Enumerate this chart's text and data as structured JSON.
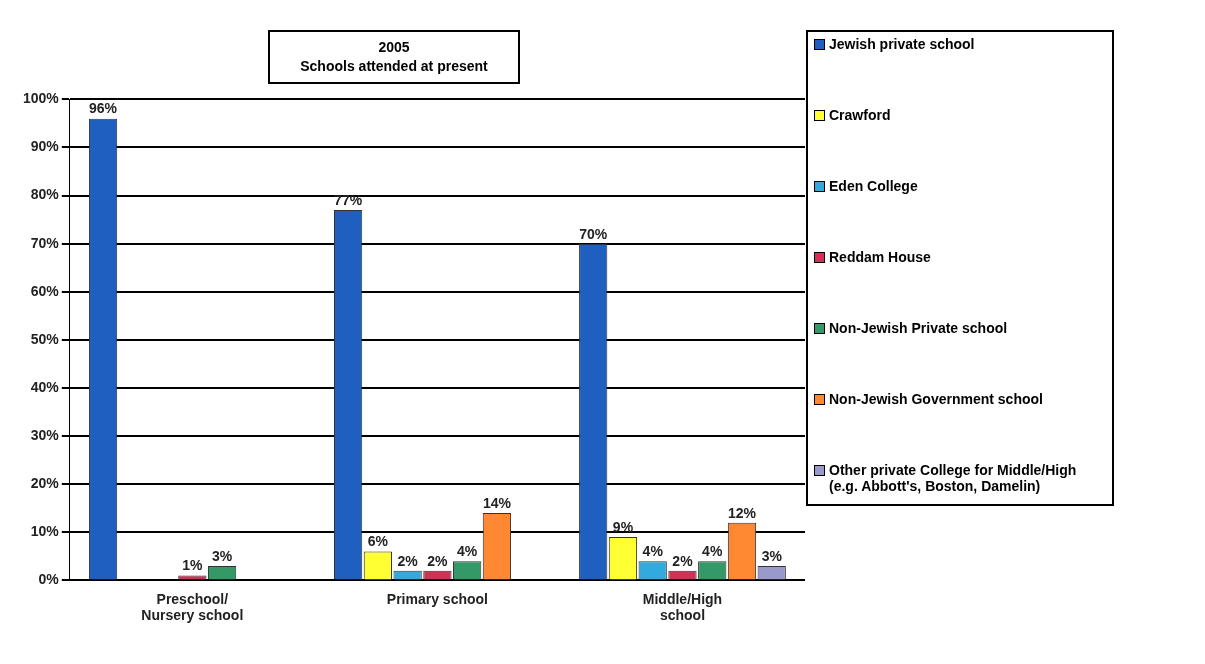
{
  "chart_data": {
    "type": "bar",
    "title": "2005",
    "subtitle": "Schools attended at present",
    "categories": [
      "Preschool/ Nursery school",
      "Primary school",
      "Middle/High school"
    ],
    "series": [
      {
        "name": "Jewish private school",
        "color": "#1f5fbf",
        "values": [
          96,
          77,
          70
        ],
        "value_labels": [
          "96%",
          "77%",
          "70%"
        ]
      },
      {
        "name": "Crawford",
        "color": "#ffff33",
        "values": [
          null,
          6,
          9
        ],
        "value_labels": [
          null,
          "6%",
          "9%"
        ]
      },
      {
        "name": "Eden College",
        "color": "#33aadd",
        "values": [
          null,
          2,
          4
        ],
        "value_labels": [
          null,
          "2%",
          "4%"
        ]
      },
      {
        "name": "Reddam House",
        "color": "#cc3355",
        "values": [
          1,
          2,
          2
        ],
        "value_labels": [
          "1%",
          "2%",
          "2%"
        ]
      },
      {
        "name": "Non-Jewish Private school",
        "color": "#339966",
        "values": [
          3,
          4,
          4
        ],
        "value_labels": [
          "3%",
          "4%",
          "4%"
        ]
      },
      {
        "name": "Non-Jewish Government school",
        "color": "#ff8833",
        "values": [
          null,
          14,
          12
        ],
        "value_labels": [
          null,
          "14%",
          "12%"
        ]
      },
      {
        "name": "Other private College for Middle/High (e.g. Abbott's, Boston, Damelin)",
        "color": "#9999cc",
        "values": [
          null,
          null,
          3
        ],
        "value_labels": [
          null,
          null,
          "3%"
        ]
      }
    ],
    "ylim": [
      0,
      100
    ],
    "yticks": [
      {
        "value": 0,
        "label": "0%"
      },
      {
        "value": 10,
        "label": "10%"
      },
      {
        "value": 20,
        "label": "20%"
      },
      {
        "value": 30,
        "label": "30%"
      },
      {
        "value": 40,
        "label": "40%"
      },
      {
        "value": 50,
        "label": "50%"
      },
      {
        "value": 60,
        "label": "60%"
      },
      {
        "value": 70,
        "label": "70%"
      },
      {
        "value": 80,
        "label": "80%"
      },
      {
        "value": 90,
        "label": "90%"
      },
      {
        "value": 100,
        "label": "100%"
      }
    ],
    "grid": "y",
    "legend": "right"
  }
}
